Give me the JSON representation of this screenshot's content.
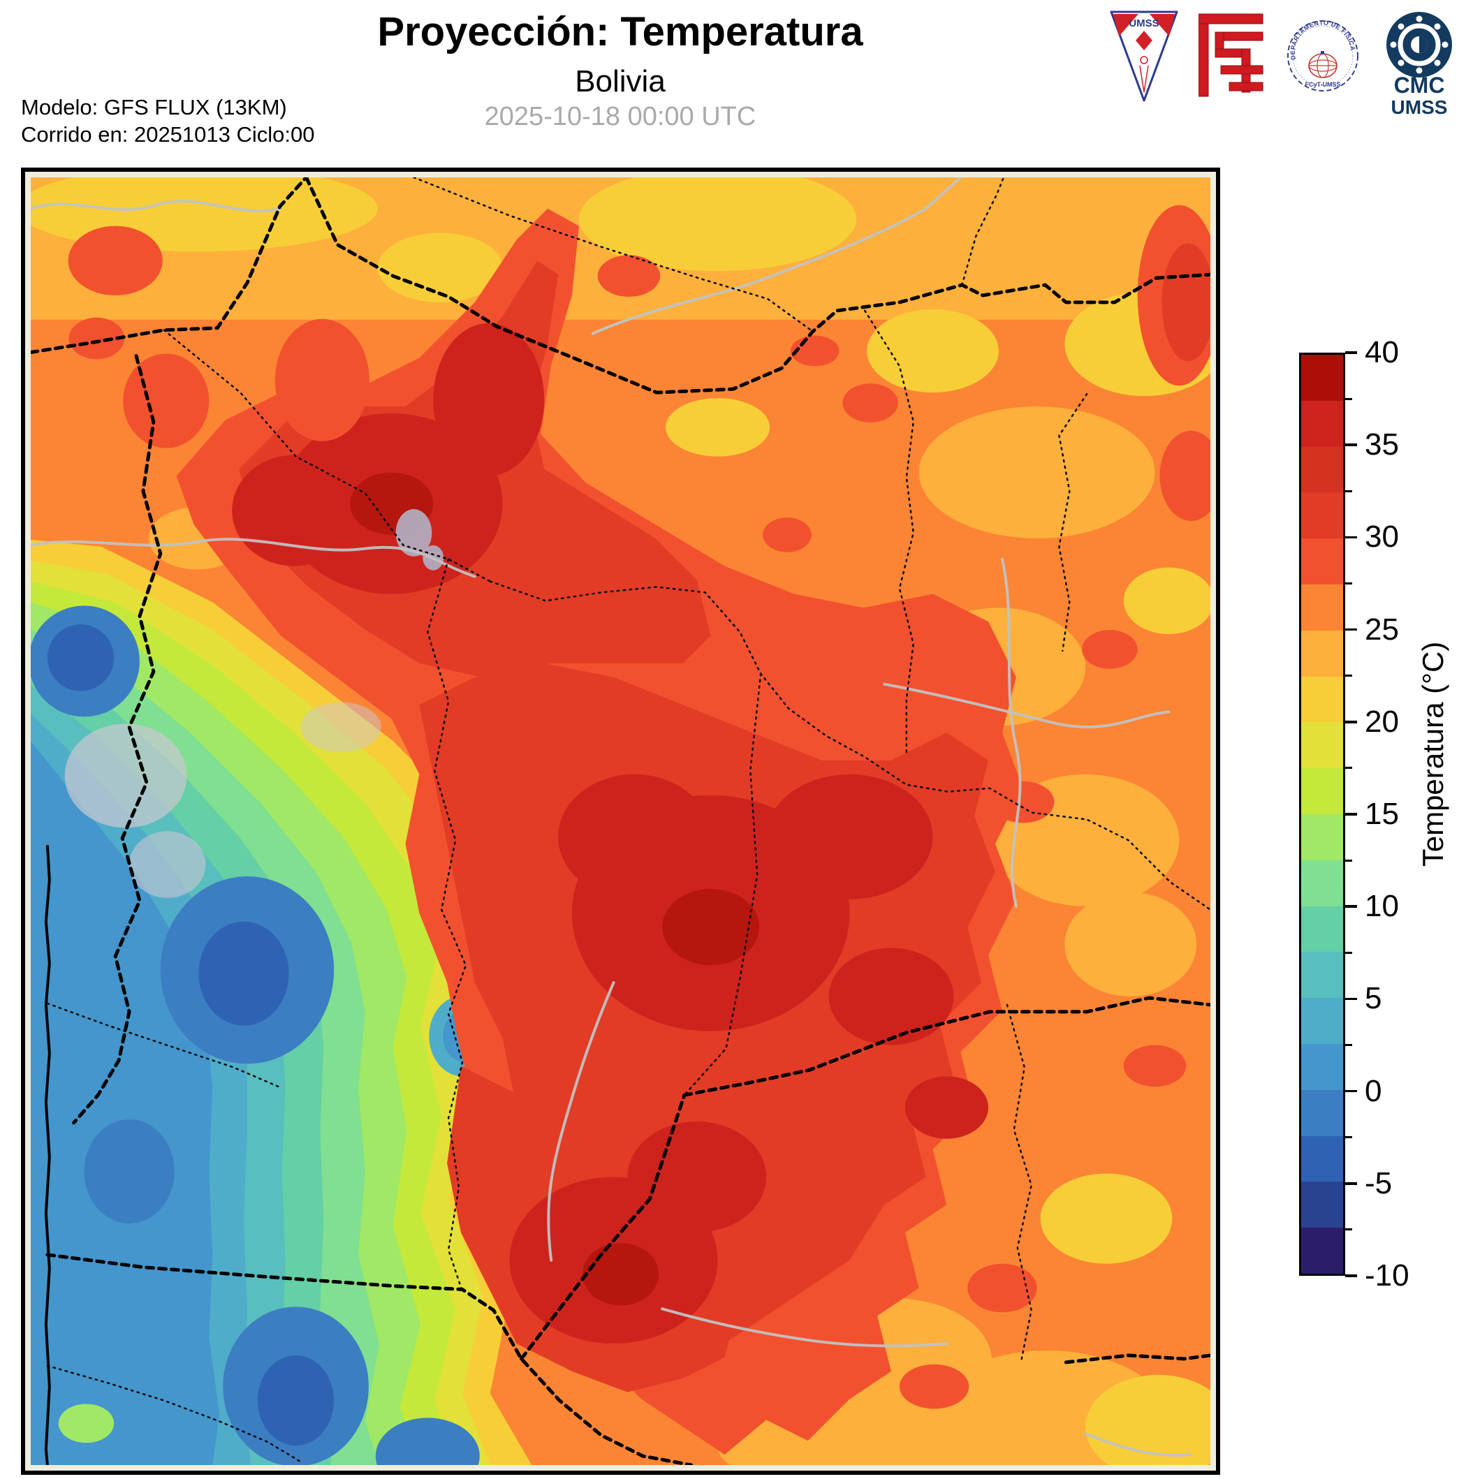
{
  "header": {
    "title": "Proyección: Temperatura",
    "subtitle": "Bolivia",
    "datetime": "2025-10-18 00:00 UTC",
    "model_line1": "Modelo: GFS FLUX (13KM)",
    "model_line2": "Corrido en: 20251013 Ciclo:00"
  },
  "logos": {
    "umss_pennant": {
      "label": "UMSS"
    },
    "fisica_stamp": {
      "label_top": "DEPARTAMENTO DE FÍSICA",
      "label_bottom": "FCyT-UMSS"
    },
    "cmc": {
      "line1": "CMC",
      "line2": "UMSS"
    }
  },
  "colorbar": {
    "label": "Temperatura (°C)",
    "min": -10,
    "max": 40,
    "major_ticks": [
      40,
      35,
      30,
      25,
      20,
      15,
      10,
      5,
      0,
      -5,
      -10
    ],
    "minor_tick_step": 2.5,
    "segments_top_to_bottom": [
      {
        "range": [
          37.5,
          40
        ],
        "color": "#AE0E08"
      },
      {
        "range": [
          35,
          37.5
        ],
        "color": "#CE231D"
      },
      {
        "range": [
          32.5,
          35
        ],
        "color": "#D5321F"
      },
      {
        "range": [
          30,
          32.5
        ],
        "color": "#E23C26"
      },
      {
        "range": [
          27.5,
          30
        ],
        "color": "#F2512F"
      },
      {
        "range": [
          25,
          27.5
        ],
        "color": "#FB8534"
      },
      {
        "range": [
          22.5,
          25
        ],
        "color": "#FDB03C"
      },
      {
        "range": [
          20,
          22.5
        ],
        "color": "#F7CE38"
      },
      {
        "range": [
          17.5,
          20
        ],
        "color": "#E3E139"
      },
      {
        "range": [
          15,
          17.5
        ],
        "color": "#C4E93A"
      },
      {
        "range": [
          12.5,
          15
        ],
        "color": "#A0E865"
      },
      {
        "range": [
          10,
          12.5
        ],
        "color": "#80DF90"
      },
      {
        "range": [
          7.5,
          10
        ],
        "color": "#65CFA6"
      },
      {
        "range": [
          5,
          7.5
        ],
        "color": "#59BEBE"
      },
      {
        "range": [
          2.5,
          5
        ],
        "color": "#50ADCA"
      },
      {
        "range": [
          0,
          2.5
        ],
        "color": "#4496CC"
      },
      {
        "range": [
          -2.5,
          0
        ],
        "color": "#3C7EC2"
      },
      {
        "range": [
          -5,
          -2.5
        ],
        "color": "#2E63B4"
      },
      {
        "range": [
          -7.5,
          -5
        ],
        "color": "#2A4390"
      },
      {
        "range": [
          -10,
          -7.5
        ],
        "color": "#2C1D6B"
      }
    ]
  },
  "map": {
    "region": "Bolivia",
    "variable": "Temperatura",
    "lake_color": "#B2ABBE",
    "river_color": "#C2C2C2",
    "border_country_style": "bold dashed black",
    "border_department_style": "dotted black",
    "frame_color": "#000000"
  }
}
